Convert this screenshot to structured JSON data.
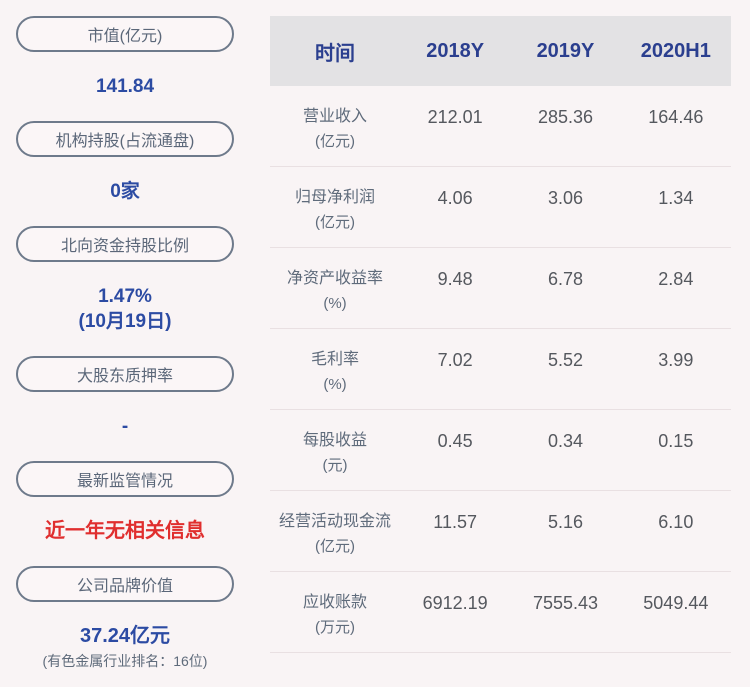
{
  "colors": {
    "page_background": "#f9f4f5",
    "pill_border": "#6e7a8b",
    "pill_text": "#5b6779",
    "sidebar_value_blue": "#2c4ba3",
    "alert_red": "#e02e2e",
    "table_header_background": "#e3e2e4",
    "table_header_text": "#2b3f8f",
    "table_label_text": "#5f6b7b",
    "table_value_text": "#55585e"
  },
  "sidebar": {
    "market_cap": {
      "label": "市值(亿元)",
      "value": "141.84"
    },
    "institution_holding": {
      "label": "机构持股(占流通盘)",
      "value": "0家"
    },
    "northbound_holding": {
      "label": "北向资金持股比例",
      "value": "1.47%",
      "value2": "(10月19日)"
    },
    "major_shareholder_pledge": {
      "label": "大股东质押率",
      "value": "-"
    },
    "latest_supervision": {
      "label": "最新监管情况",
      "value": "近一年无相关信息"
    },
    "brand_value": {
      "label": "公司品牌价值",
      "value": "37.24亿元",
      "subtext": "(有色金属行业排名：16位)"
    }
  },
  "table": {
    "columns": [
      "时间",
      "2018Y",
      "2019Y",
      "2020H1"
    ],
    "rows": [
      {
        "name": "营业收入",
        "unit": "(亿元)",
        "values": [
          "212.01",
          "285.36",
          "164.46"
        ]
      },
      {
        "name": "归母净利润",
        "unit": "(亿元)",
        "values": [
          "4.06",
          "3.06",
          "1.34"
        ]
      },
      {
        "name": "净资产收益率",
        "unit": "(%)",
        "values": [
          "9.48",
          "6.78",
          "2.84"
        ]
      },
      {
        "name": "毛利率",
        "unit": "(%)",
        "values": [
          "7.02",
          "5.52",
          "3.99"
        ]
      },
      {
        "name": "每股收益",
        "unit": "(元)",
        "values": [
          "0.45",
          "0.34",
          "0.15"
        ]
      },
      {
        "name": "经营活动现金流",
        "unit": "(亿元)",
        "values": [
          "11.57",
          "5.16",
          "6.10"
        ]
      },
      {
        "name": "应收账款",
        "unit": "(万元)",
        "values": [
          "6912.19",
          "7555.43",
          "5049.44"
        ]
      }
    ]
  },
  "chart_data": {
    "type": "table",
    "title": "财务指标表",
    "categories": [
      "2018Y",
      "2019Y",
      "2020H1"
    ],
    "series": [
      {
        "name": "营业收入(亿元)",
        "values": [
          212.01,
          285.36,
          164.46
        ]
      },
      {
        "name": "归母净利润(亿元)",
        "values": [
          4.06,
          3.06,
          1.34
        ]
      },
      {
        "name": "净资产收益率(%)",
        "values": [
          9.48,
          6.78,
          2.84
        ]
      },
      {
        "name": "毛利率(%)",
        "values": [
          7.02,
          5.52,
          3.99
        ]
      },
      {
        "name": "每股收益(元)",
        "values": [
          0.45,
          0.34,
          0.15
        ]
      },
      {
        "name": "经营活动现金流(亿元)",
        "values": [
          11.57,
          5.16,
          6.1
        ]
      },
      {
        "name": "应收账款(万元)",
        "values": [
          6912.19,
          7555.43,
          5049.44
        ]
      }
    ]
  }
}
